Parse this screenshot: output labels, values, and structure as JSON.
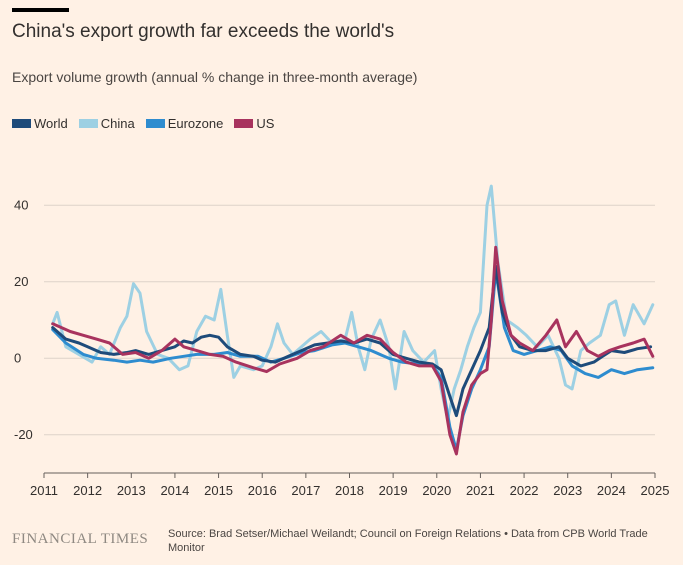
{
  "header": {
    "title": "China's export growth far exceeds the world's",
    "subtitle": "Export volume growth (annual % change in three-month average)"
  },
  "footer": {
    "brand": "FINANCIAL TIMES",
    "source": "Source: Brad Setser/Michael Weilandt; Council on Foreign Relations • Data from CPB World Trade Monitor"
  },
  "chart_data": {
    "type": "line",
    "title": "China's export growth far exceeds the world's",
    "subtitle": "Export volume growth (annual % change in three-month average)",
    "xlabel": "",
    "ylabel": "",
    "xlim": [
      2011,
      2025
    ],
    "ylim": [
      -30,
      50
    ],
    "x_ticks": [
      2011,
      2012,
      2013,
      2014,
      2015,
      2016,
      2017,
      2018,
      2019,
      2020,
      2021,
      2022,
      2023,
      2024,
      2025
    ],
    "x_tick_labels": [
      "2011",
      "2012",
      "2013",
      "2014",
      "2015",
      "2016",
      "2017",
      "2018",
      "2019",
      "2020",
      "2021",
      "2022",
      "2023",
      "2024",
      "2025"
    ],
    "y_ticks": [
      -20,
      0,
      20,
      40
    ],
    "y_tick_labels": [
      "-20",
      "0",
      "20",
      "40"
    ],
    "grid": true,
    "legend_position": "top-left",
    "series": [
      {
        "name": "World",
        "color": "#1e4b7a",
        "points": [
          [
            2011.2,
            8
          ],
          [
            2011.5,
            5
          ],
          [
            2011.8,
            4
          ],
          [
            2012.0,
            3
          ],
          [
            2012.3,
            1.5
          ],
          [
            2012.6,
            1
          ],
          [
            2012.9,
            1.5
          ],
          [
            2013.1,
            2
          ],
          [
            2013.4,
            1
          ],
          [
            2013.7,
            2
          ],
          [
            2014.0,
            3
          ],
          [
            2014.2,
            4.5
          ],
          [
            2014.4,
            4
          ],
          [
            2014.6,
            5.5
          ],
          [
            2014.8,
            6
          ],
          [
            2015.0,
            5.5
          ],
          [
            2015.2,
            3
          ],
          [
            2015.5,
            1
          ],
          [
            2015.8,
            0.5
          ],
          [
            2016.0,
            -0.5
          ],
          [
            2016.3,
            -1
          ],
          [
            2016.6,
            0.5
          ],
          [
            2016.9,
            2
          ],
          [
            2017.2,
            3.5
          ],
          [
            2017.5,
            4
          ],
          [
            2017.8,
            4.5
          ],
          [
            2018.1,
            4
          ],
          [
            2018.4,
            5
          ],
          [
            2018.7,
            4
          ],
          [
            2019.0,
            1
          ],
          [
            2019.3,
            0
          ],
          [
            2019.6,
            -1
          ],
          [
            2019.9,
            -1.5
          ],
          [
            2020.1,
            -3
          ],
          [
            2020.3,
            -10
          ],
          [
            2020.45,
            -15
          ],
          [
            2020.6,
            -8
          ],
          [
            2020.8,
            -3
          ],
          [
            2021.0,
            2
          ],
          [
            2021.2,
            8
          ],
          [
            2021.35,
            24
          ],
          [
            2021.5,
            12
          ],
          [
            2021.7,
            6
          ],
          [
            2021.9,
            3
          ],
          [
            2022.2,
            2
          ],
          [
            2022.5,
            2
          ],
          [
            2022.8,
            3
          ],
          [
            2023.0,
            0
          ],
          [
            2023.3,
            -2
          ],
          [
            2023.6,
            -1
          ],
          [
            2023.8,
            0.5
          ],
          [
            2024.0,
            2
          ],
          [
            2024.3,
            1.5
          ],
          [
            2024.6,
            2.5
          ],
          [
            2024.9,
            3
          ]
        ]
      },
      {
        "name": "China",
        "color": "#9dd0e3",
        "points": [
          [
            2011.2,
            9
          ],
          [
            2011.3,
            12
          ],
          [
            2011.5,
            3
          ],
          [
            2011.8,
            1
          ],
          [
            2012.1,
            -1
          ],
          [
            2012.3,
            3
          ],
          [
            2012.5,
            1
          ],
          [
            2012.75,
            8
          ],
          [
            2012.9,
            11
          ],
          [
            2013.05,
            19.5
          ],
          [
            2013.2,
            17
          ],
          [
            2013.35,
            7
          ],
          [
            2013.6,
            1
          ],
          [
            2013.85,
            0
          ],
          [
            2014.1,
            -3
          ],
          [
            2014.3,
            -2
          ],
          [
            2014.5,
            7
          ],
          [
            2014.7,
            11
          ],
          [
            2014.9,
            10
          ],
          [
            2015.05,
            18
          ],
          [
            2015.2,
            6
          ],
          [
            2015.35,
            -5
          ],
          [
            2015.5,
            -2
          ],
          [
            2015.8,
            -3
          ],
          [
            2016.0,
            -2
          ],
          [
            2016.2,
            3
          ],
          [
            2016.35,
            9
          ],
          [
            2016.5,
            4
          ],
          [
            2016.7,
            1
          ],
          [
            2016.9,
            3
          ],
          [
            2017.1,
            5
          ],
          [
            2017.35,
            7
          ],
          [
            2017.6,
            4
          ],
          [
            2017.9,
            5
          ],
          [
            2018.05,
            12
          ],
          [
            2018.2,
            3
          ],
          [
            2018.35,
            -3
          ],
          [
            2018.5,
            5
          ],
          [
            2018.7,
            10
          ],
          [
            2018.9,
            3
          ],
          [
            2019.05,
            -8
          ],
          [
            2019.25,
            7
          ],
          [
            2019.45,
            2
          ],
          [
            2019.7,
            -1
          ],
          [
            2019.95,
            2
          ],
          [
            2020.1,
            -8
          ],
          [
            2020.25,
            -16
          ],
          [
            2020.4,
            -8
          ],
          [
            2020.55,
            -3
          ],
          [
            2020.7,
            3
          ],
          [
            2020.85,
            8
          ],
          [
            2021.0,
            12
          ],
          [
            2021.15,
            40
          ],
          [
            2021.25,
            45
          ],
          [
            2021.4,
            25
          ],
          [
            2021.6,
            10
          ],
          [
            2021.85,
            8
          ],
          [
            2022.05,
            6
          ],
          [
            2022.3,
            3
          ],
          [
            2022.55,
            6
          ],
          [
            2022.8,
            0
          ],
          [
            2022.95,
            -7
          ],
          [
            2023.1,
            -8
          ],
          [
            2023.3,
            2
          ],
          [
            2023.5,
            4
          ],
          [
            2023.75,
            6
          ],
          [
            2023.95,
            14
          ],
          [
            2024.1,
            15
          ],
          [
            2024.3,
            6
          ],
          [
            2024.5,
            14
          ],
          [
            2024.75,
            9
          ],
          [
            2024.95,
            14
          ]
        ]
      },
      {
        "name": "Eurozone",
        "color": "#2e8ccf",
        "points": [
          [
            2011.2,
            7.5
          ],
          [
            2011.5,
            4
          ],
          [
            2011.9,
            1
          ],
          [
            2012.2,
            0
          ],
          [
            2012.6,
            -0.5
          ],
          [
            2012.9,
            -1
          ],
          [
            2013.2,
            -0.5
          ],
          [
            2013.5,
            -1
          ],
          [
            2013.9,
            0
          ],
          [
            2014.2,
            0.5
          ],
          [
            2014.5,
            1
          ],
          [
            2014.9,
            1
          ],
          [
            2015.2,
            1.5
          ],
          [
            2015.5,
            0.5
          ],
          [
            2015.9,
            0.5
          ],
          [
            2016.2,
            -1
          ],
          [
            2016.5,
            0
          ],
          [
            2016.9,
            1.5
          ],
          [
            2017.2,
            2
          ],
          [
            2017.6,
            3.5
          ],
          [
            2017.9,
            4
          ],
          [
            2018.2,
            3
          ],
          [
            2018.5,
            2
          ],
          [
            2018.9,
            0
          ],
          [
            2019.2,
            -1
          ],
          [
            2019.6,
            -1.5
          ],
          [
            2019.9,
            -2
          ],
          [
            2020.1,
            -5
          ],
          [
            2020.3,
            -18
          ],
          [
            2020.45,
            -24
          ],
          [
            2020.6,
            -15
          ],
          [
            2020.8,
            -8
          ],
          [
            2021.0,
            -3
          ],
          [
            2021.2,
            3
          ],
          [
            2021.35,
            23
          ],
          [
            2021.55,
            8
          ],
          [
            2021.75,
            2
          ],
          [
            2022.0,
            1
          ],
          [
            2022.3,
            2
          ],
          [
            2022.6,
            3
          ],
          [
            2022.85,
            2
          ],
          [
            2023.1,
            -2
          ],
          [
            2023.4,
            -4
          ],
          [
            2023.7,
            -5
          ],
          [
            2024.0,
            -3
          ],
          [
            2024.3,
            -4
          ],
          [
            2024.6,
            -3
          ],
          [
            2024.95,
            -2.5
          ]
        ]
      },
      {
        "name": "US",
        "color": "#a8335e",
        "points": [
          [
            2011.2,
            9
          ],
          [
            2011.4,
            8
          ],
          [
            2011.6,
            7
          ],
          [
            2011.9,
            6
          ],
          [
            2012.2,
            5
          ],
          [
            2012.5,
            4
          ],
          [
            2012.8,
            1
          ],
          [
            2013.1,
            1.5
          ],
          [
            2013.4,
            0
          ],
          [
            2013.7,
            2
          ],
          [
            2014.0,
            5
          ],
          [
            2014.2,
            3
          ],
          [
            2014.5,
            2
          ],
          [
            2014.8,
            1
          ],
          [
            2015.1,
            0.5
          ],
          [
            2015.4,
            -1
          ],
          [
            2015.8,
            -2.5
          ],
          [
            2016.1,
            -3.5
          ],
          [
            2016.4,
            -1.5
          ],
          [
            2016.8,
            0
          ],
          [
            2017.1,
            2
          ],
          [
            2017.4,
            3
          ],
          [
            2017.8,
            6
          ],
          [
            2018.1,
            4
          ],
          [
            2018.4,
            6
          ],
          [
            2018.7,
            5
          ],
          [
            2019.0,
            1.5
          ],
          [
            2019.3,
            -1
          ],
          [
            2019.6,
            -2
          ],
          [
            2019.9,
            -2
          ],
          [
            2020.1,
            -6
          ],
          [
            2020.3,
            -20
          ],
          [
            2020.45,
            -25
          ],
          [
            2020.6,
            -14
          ],
          [
            2020.8,
            -7
          ],
          [
            2021.0,
            -4
          ],
          [
            2021.15,
            -3
          ],
          [
            2021.25,
            10
          ],
          [
            2021.35,
            29
          ],
          [
            2021.5,
            15
          ],
          [
            2021.7,
            6
          ],
          [
            2021.9,
            4
          ],
          [
            2022.2,
            2
          ],
          [
            2022.5,
            6
          ],
          [
            2022.75,
            10
          ],
          [
            2022.95,
            3
          ],
          [
            2023.2,
            7
          ],
          [
            2023.45,
            2
          ],
          [
            2023.7,
            0.5
          ],
          [
            2023.95,
            2
          ],
          [
            2024.2,
            3
          ],
          [
            2024.5,
            4
          ],
          [
            2024.75,
            5
          ],
          [
            2024.95,
            0.5
          ]
        ]
      }
    ]
  }
}
